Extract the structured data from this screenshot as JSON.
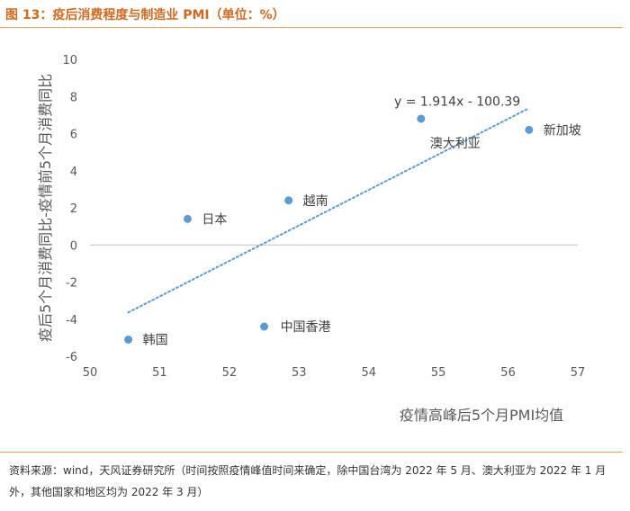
{
  "header": {
    "title": "图 13：疫后消费程度与制造业 PMI（单位：%）"
  },
  "colors": {
    "accent": "#d2691e",
    "rule": "#f0a050",
    "point": "#5b9bd5",
    "trend": "#5b9bd5",
    "axis_text": "#595959",
    "zero_line": "#bfbfbf"
  },
  "chart_data": {
    "type": "scatter",
    "title": "",
    "xlabel": "疫情高峰后5个月PMI均值",
    "ylabel": "疫后5个月消费同比-疫情前5个月消费同比",
    "xlim": [
      50,
      57
    ],
    "ylim": [
      -6,
      10
    ],
    "x_ticks": [
      "50",
      "51",
      "52",
      "53",
      "54",
      "55",
      "56",
      "57"
    ],
    "y_ticks": [
      "-6",
      "-4",
      "-2",
      "0",
      "2",
      "4",
      "6",
      "8",
      "10"
    ],
    "grid": false,
    "points": [
      {
        "label": "韩国",
        "x": 50.55,
        "y": -5.1
      },
      {
        "label": "日本",
        "x": 51.4,
        "y": 1.4
      },
      {
        "label": "中国香港",
        "x": 52.5,
        "y": -4.4
      },
      {
        "label": "越南",
        "x": 52.85,
        "y": 2.4
      },
      {
        "label": "澳大利亚",
        "x": 54.75,
        "y": 6.8
      },
      {
        "label": "新加坡",
        "x": 56.3,
        "y": 6.2
      }
    ],
    "trendline": {
      "equation": "y = 1.914x - 100.39",
      "slope": 1.914,
      "intercept": -100.39,
      "x_from": 50.55,
      "x_to": 56.3
    }
  },
  "footer": {
    "source": "资料来源：wind，天风证券研究所（时间按照疫情峰值时间来确定，除中国台湾为 2022 年 5 月、澳大利亚为 2022 年 1 月外，其他国家和地区均为 2022 年 3 月）"
  }
}
